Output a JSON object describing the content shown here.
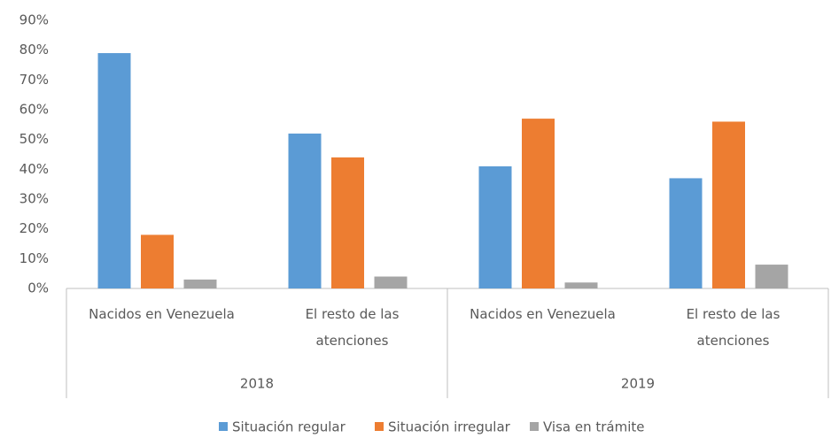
{
  "chart_data": {
    "type": "bar",
    "categories": [
      "Nacidos en Venezuela",
      "El resto de las atenciones",
      "Nacidos en Venezuela",
      "El resto de las atenciones"
    ],
    "category_groups": [
      {
        "label": "2018",
        "span": 2
      },
      {
        "label": "2019",
        "span": 2
      }
    ],
    "series": [
      {
        "name": "Situación regular",
        "color": "#5b9bd5",
        "values": [
          79,
          52,
          41,
          37
        ]
      },
      {
        "name": "Situación irregular",
        "color": "#ed7d31",
        "values": [
          18,
          44,
          57,
          56
        ]
      },
      {
        "name": "Visa en trámite",
        "color": "#a5a5a5",
        "values": [
          3,
          4,
          2,
          8
        ]
      }
    ],
    "ylim": [
      0,
      90
    ],
    "yticks": [
      {
        "value": 0,
        "label": "0%"
      },
      {
        "value": 10,
        "label": "10%"
      },
      {
        "value": 20,
        "label": "20%"
      },
      {
        "value": 30,
        "label": "30%"
      },
      {
        "value": 40,
        "label": "40%"
      },
      {
        "value": 50,
        "label": "50%"
      },
      {
        "value": 60,
        "label": "60%"
      },
      {
        "value": 70,
        "label": "70%"
      },
      {
        "value": 80,
        "label": "80%"
      },
      {
        "value": 90,
        "label": "90%"
      }
    ],
    "grid": false,
    "legend": "bottom"
  }
}
